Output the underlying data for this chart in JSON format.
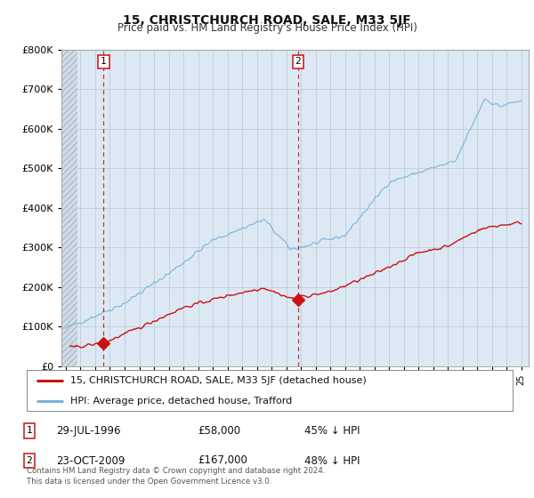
{
  "title": "15, CHRISTCHURCH ROAD, SALE, M33 5JF",
  "subtitle": "Price paid vs. HM Land Registry's House Price Index (HPI)",
  "background_color": "#ffffff",
  "plot_bg_color": "#dce9f5",
  "grid_color": "#c8d8e8",
  "hpi_color": "#7ab4d8",
  "price_color": "#cc1111",
  "ylim": [
    0,
    800000
  ],
  "yticks": [
    0,
    100000,
    200000,
    300000,
    400000,
    500000,
    600000,
    700000,
    800000
  ],
  "ytick_labels": [
    "£0",
    "£100K",
    "£200K",
    "£300K",
    "£400K",
    "£500K",
    "£600K",
    "£700K",
    "£800K"
  ],
  "xlim_start": 1993.7,
  "xlim_end": 2025.5,
  "sale1_x": 1996.57,
  "sale1_y": 58000,
  "sale2_x": 2009.81,
  "sale2_y": 167000,
  "legend_label_price": "15, CHRISTCHURCH ROAD, SALE, M33 5JF (detached house)",
  "legend_label_hpi": "HPI: Average price, detached house, Trafford",
  "annotation1_date": "29-JUL-1996",
  "annotation1_price": "£58,000",
  "annotation1_pct": "45% ↓ HPI",
  "annotation2_date": "23-OCT-2009",
  "annotation2_price": "£167,000",
  "annotation2_pct": "48% ↓ HPI",
  "footer": "Contains HM Land Registry data © Crown copyright and database right 2024.\nThis data is licensed under the Open Government Licence v3.0."
}
